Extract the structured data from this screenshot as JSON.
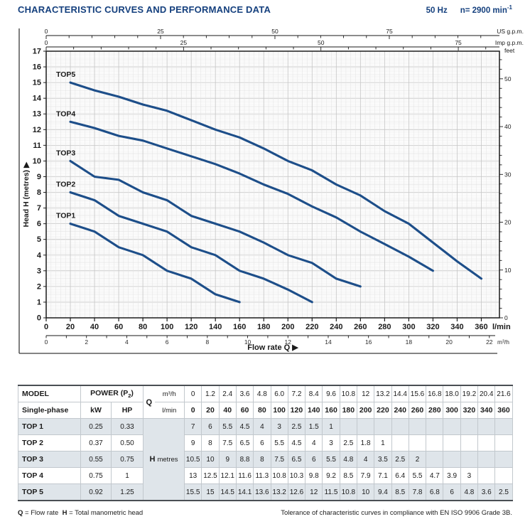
{
  "header": {
    "title": "CHARACTERISTIC CURVES AND PERFORMANCE DATA",
    "frequency": "50 Hz",
    "speed": "n= 2900 min",
    "speed_sup": "-1"
  },
  "chart_data": {
    "type": "line",
    "curve_color": "#1d4e89",
    "x_axis": {
      "label": "Flow rate Q",
      "unit": "l/min",
      "ticks": [
        0,
        20,
        40,
        60,
        80,
        100,
        120,
        140,
        160,
        180,
        200,
        220,
        240,
        260,
        280,
        300,
        320,
        340,
        360
      ],
      "range": [
        0,
        375
      ]
    },
    "x_axis_secondary": {
      "unit": "m³/h",
      "labeled_ticks": [
        0,
        2,
        4,
        6,
        8,
        10,
        12,
        14,
        16,
        18,
        20,
        22
      ]
    },
    "top_axis_us": {
      "label": "US g.p.m.",
      "labeled_ticks": [
        0,
        25,
        50,
        75
      ]
    },
    "top_axis_imp": {
      "label": "Imp g.p.m.",
      "labeled_ticks": [
        0,
        25,
        50,
        75
      ]
    },
    "y_axis": {
      "label": "Head H  (metres)",
      "ticks": [
        0,
        1,
        2,
        3,
        4,
        5,
        6,
        7,
        8,
        9,
        10,
        11,
        12,
        13,
        14,
        15,
        16,
        17
      ],
      "range": [
        0,
        17
      ]
    },
    "right_axis": {
      "label": "feet",
      "labeled_ticks": [
        0,
        10,
        20,
        30,
        40,
        50
      ]
    },
    "series": [
      {
        "name": "TOP1",
        "points": [
          [
            20,
            6
          ],
          [
            40,
            5.5
          ],
          [
            60,
            4.5
          ],
          [
            80,
            4
          ],
          [
            100,
            3
          ],
          [
            120,
            2.5
          ],
          [
            140,
            1.5
          ],
          [
            160,
            1
          ]
        ]
      },
      {
        "name": "TOP2",
        "points": [
          [
            20,
            8
          ],
          [
            40,
            7.5
          ],
          [
            60,
            6.5
          ],
          [
            80,
            6
          ],
          [
            100,
            5.5
          ],
          [
            120,
            4.5
          ],
          [
            140,
            4
          ],
          [
            160,
            3
          ],
          [
            180,
            2.5
          ],
          [
            200,
            1.8
          ],
          [
            220,
            1
          ]
        ]
      },
      {
        "name": "TOP3",
        "points": [
          [
            20,
            10
          ],
          [
            40,
            9
          ],
          [
            60,
            8.8
          ],
          [
            80,
            8
          ],
          [
            100,
            7.5
          ],
          [
            120,
            6.5
          ],
          [
            140,
            6
          ],
          [
            160,
            5.5
          ],
          [
            180,
            4.8
          ],
          [
            200,
            4
          ],
          [
            220,
            3.5
          ],
          [
            240,
            2.5
          ],
          [
            260,
            2
          ]
        ]
      },
      {
        "name": "TOP4",
        "points": [
          [
            20,
            12.5
          ],
          [
            40,
            12.1
          ],
          [
            60,
            11.6
          ],
          [
            80,
            11.3
          ],
          [
            100,
            10.8
          ],
          [
            120,
            10.3
          ],
          [
            140,
            9.8
          ],
          [
            160,
            9.2
          ],
          [
            180,
            8.5
          ],
          [
            200,
            7.9
          ],
          [
            220,
            7.1
          ],
          [
            240,
            6.4
          ],
          [
            260,
            5.5
          ],
          [
            280,
            4.7
          ],
          [
            300,
            3.9
          ],
          [
            320,
            3
          ]
        ]
      },
      {
        "name": "TOP5",
        "points": [
          [
            20,
            15
          ],
          [
            40,
            14.5
          ],
          [
            60,
            14.1
          ],
          [
            80,
            13.6
          ],
          [
            100,
            13.2
          ],
          [
            120,
            12.6
          ],
          [
            140,
            12
          ],
          [
            160,
            11.5
          ],
          [
            180,
            10.8
          ],
          [
            200,
            10
          ],
          [
            220,
            9.4
          ],
          [
            240,
            8.5
          ],
          [
            260,
            7.8
          ],
          [
            280,
            6.8
          ],
          [
            300,
            6
          ],
          [
            320,
            4.8
          ],
          [
            340,
            3.6
          ],
          [
            360,
            2.5
          ]
        ]
      }
    ]
  },
  "table": {
    "header": {
      "model": "MODEL",
      "model_sub": "Single-phase",
      "power_prefix": "POWER (P",
      "power_sub": "2",
      "power_suffix": ")",
      "kw": "kW",
      "hp": "HP",
      "q": "Q",
      "unit_m3h": "m³/h",
      "unit_lmin": "l/min",
      "h_label": "H",
      "h_unit": "metres"
    },
    "flow_m3h": [
      "0",
      "1.2",
      "2.4",
      "3.6",
      "4.8",
      "6.0",
      "7.2",
      "8.4",
      "9.6",
      "10.8",
      "12",
      "13.2",
      "14.4",
      "15.6",
      "16.8",
      "18.0",
      "19.2",
      "20.4",
      "21.6"
    ],
    "flow_lmin": [
      "0",
      "20",
      "40",
      "60",
      "80",
      "100",
      "120",
      "140",
      "160",
      "180",
      "200",
      "220",
      "240",
      "260",
      "280",
      "300",
      "320",
      "340",
      "360"
    ],
    "rows": [
      {
        "model": "TOP 1",
        "kw": "0.25",
        "hp": "0.33",
        "h": [
          "7",
          "6",
          "5.5",
          "4.5",
          "4",
          "3",
          "2.5",
          "1.5",
          "1",
          "",
          "",
          "",
          "",
          "",
          "",
          "",
          "",
          "",
          ""
        ]
      },
      {
        "model": "TOP 2",
        "kw": "0.37",
        "hp": "0.50",
        "h": [
          "9",
          "8",
          "7.5",
          "6.5",
          "6",
          "5.5",
          "4.5",
          "4",
          "3",
          "2.5",
          "1.8",
          "1",
          "",
          "",
          "",
          "",
          "",
          "",
          ""
        ]
      },
      {
        "model": "TOP 3",
        "kw": "0.55",
        "hp": "0.75",
        "h": [
          "10.5",
          "10",
          "9",
          "8.8",
          "8",
          "7.5",
          "6.5",
          "6",
          "5.5",
          "4.8",
          "4",
          "3.5",
          "2.5",
          "2",
          "",
          "",
          "",
          "",
          ""
        ]
      },
      {
        "model": "TOP 4",
        "kw": "0.75",
        "hp": "1",
        "h": [
          "13",
          "12.5",
          "12.1",
          "11.6",
          "11.3",
          "10.8",
          "10.3",
          "9.8",
          "9.2",
          "8.5",
          "7.9",
          "7.1",
          "6.4",
          "5.5",
          "4.7",
          "3.9",
          "3",
          "",
          ""
        ]
      },
      {
        "model": "TOP 5",
        "kw": "0.92",
        "hp": "1.25",
        "h": [
          "15.5",
          "15",
          "14.5",
          "14.1",
          "13.6",
          "13.2",
          "12.6",
          "12",
          "11.5",
          "10.8",
          "10",
          "9.4",
          "8.5",
          "7.8",
          "6.8",
          "6",
          "4.8",
          "3.6",
          "2.5"
        ]
      }
    ]
  },
  "footer": {
    "q_sym": "Q",
    "q_def": " = Flow rate",
    "h_sym": "H",
    "h_def": " = Total manometric head",
    "right": "Tolerance of characteristic curves in compliance with EN ISO 9906 Grade 3B."
  }
}
